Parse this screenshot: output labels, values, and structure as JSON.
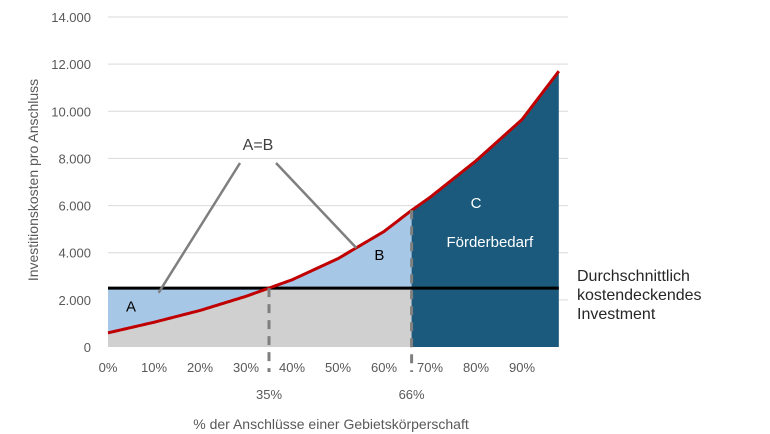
{
  "chart_data": {
    "type": "area",
    "xlabel": "% der Anschlüsse einer Gebietskörperschaft",
    "ylabel": "Investitionskosten pro Anschluss",
    "xlim": [
      0,
      100
    ],
    "ylim": [
      0,
      14000
    ],
    "x_ticks": [
      {
        "value": 0,
        "label": "0%"
      },
      {
        "value": 10,
        "label": "10%"
      },
      {
        "value": 20,
        "label": "20%"
      },
      {
        "value": 30,
        "label": "30%"
      },
      {
        "value": 40,
        "label": "40%"
      },
      {
        "value": 50,
        "label": "50%"
      },
      {
        "value": 60,
        "label": "60%"
      },
      {
        "value": 70,
        "label": "70%"
      },
      {
        "value": 80,
        "label": "80%"
      },
      {
        "value": 90,
        "label": "90%"
      }
    ],
    "y_ticks": [
      {
        "value": 0,
        "label": "0"
      },
      {
        "value": 2000,
        "label": "2.000"
      },
      {
        "value": 4000,
        "label": "4.000"
      },
      {
        "value": 6000,
        "label": "6.000"
      },
      {
        "value": 8000,
        "label": "8.000"
      },
      {
        "value": 10000,
        "label": "10.000"
      },
      {
        "value": 12000,
        "label": "12.000"
      },
      {
        "value": 14000,
        "label": "14.000"
      }
    ],
    "grid": true,
    "cost_curve": {
      "x": [
        0,
        10,
        20,
        30,
        35,
        40,
        50,
        60,
        66,
        70,
        80,
        90,
        98
      ],
      "y": [
        600,
        1050,
        1550,
        2150,
        2500,
        2850,
        3750,
        4900,
        5800,
        6350,
        7900,
        9650,
        11700
      ]
    },
    "average_cost": {
      "value": 2500,
      "label": "Durchschnittlich kostendeckendes Investment"
    },
    "markers": [
      {
        "x": 35,
        "label": "35%"
      },
      {
        "x": 66,
        "label": "66%"
      }
    ],
    "regions": [
      {
        "label": "A",
        "at": {
          "x": 5,
          "y": 1500
        }
      },
      {
        "label": "B",
        "at": {
          "x": 59,
          "y": 3700
        }
      },
      {
        "label": "C",
        "at": {
          "x": 80,
          "y": 5900
        }
      }
    ],
    "region_c_text": "Förderbedarf",
    "annotation": {
      "label": "A=B",
      "targets": [
        {
          "x": 11,
          "y": 2300
        },
        {
          "x": 54,
          "y": 4200
        }
      ]
    },
    "colors": {
      "base": "#d0d0d0",
      "area_ab": "#a7c7e7",
      "area_c": "#1c5a7d",
      "curve": "#c00000",
      "average_line": "#000000",
      "markers": "#7f7f7f",
      "grid": "#d9d9d9"
    }
  }
}
